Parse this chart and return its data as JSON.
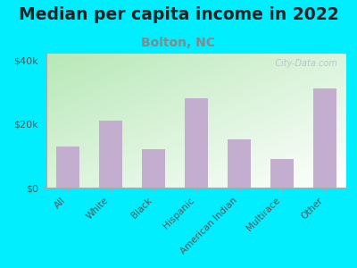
{
  "title": "Median per capita income in 2022",
  "subtitle": "Bolton, NC",
  "categories": [
    "All",
    "White",
    "Black",
    "Hispanic",
    "American Indian",
    "Multirace",
    "Other"
  ],
  "values": [
    13000,
    21000,
    12000,
    28000,
    15000,
    9000,
    31000
  ],
  "bar_color": "#c4aed0",
  "title_fontsize": 13.5,
  "subtitle_fontsize": 10,
  "subtitle_color": "#888888",
  "yticks": [
    0,
    20000,
    40000
  ],
  "ytick_labels": [
    "$0",
    "$20k",
    "$40k"
  ],
  "ylim": [
    0,
    42000
  ],
  "background_outer": "#00eeff",
  "watermark": "  City-Data.com",
  "tick_color": "#555555",
  "spine_color": "#aaaaaa",
  "grad_top_left": "#b8e8b0",
  "grad_bottom_right": "#f8fff8"
}
